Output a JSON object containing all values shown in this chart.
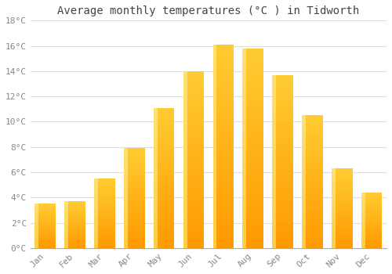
{
  "months": [
    "Jan",
    "Feb",
    "Mar",
    "Apr",
    "May",
    "Jun",
    "Jul",
    "Aug",
    "Sep",
    "Oct",
    "Nov",
    "Dec"
  ],
  "temperatures": [
    3.5,
    3.7,
    5.5,
    7.9,
    11.1,
    14.0,
    16.1,
    15.8,
    13.7,
    10.5,
    6.3,
    4.4
  ],
  "title": "Average monthly temperatures (°C ) in Tidworth",
  "ylim": [
    0,
    18
  ],
  "yticks": [
    0,
    2,
    4,
    6,
    8,
    10,
    12,
    14,
    16,
    18
  ],
  "ytick_labels": [
    "0°C",
    "2°C",
    "4°C",
    "6°C",
    "8°C",
    "10°C",
    "12°C",
    "14°C",
    "16°C",
    "18°C"
  ],
  "bar_color_bottom": "#FFB300",
  "bar_color_top": "#FFD040",
  "bar_highlight": "#FFE080",
  "background_color": "#FFFFFF",
  "grid_color": "#DDDDDD",
  "title_fontsize": 10,
  "tick_fontsize": 8,
  "font_family": "monospace",
  "tick_color": "#888888"
}
